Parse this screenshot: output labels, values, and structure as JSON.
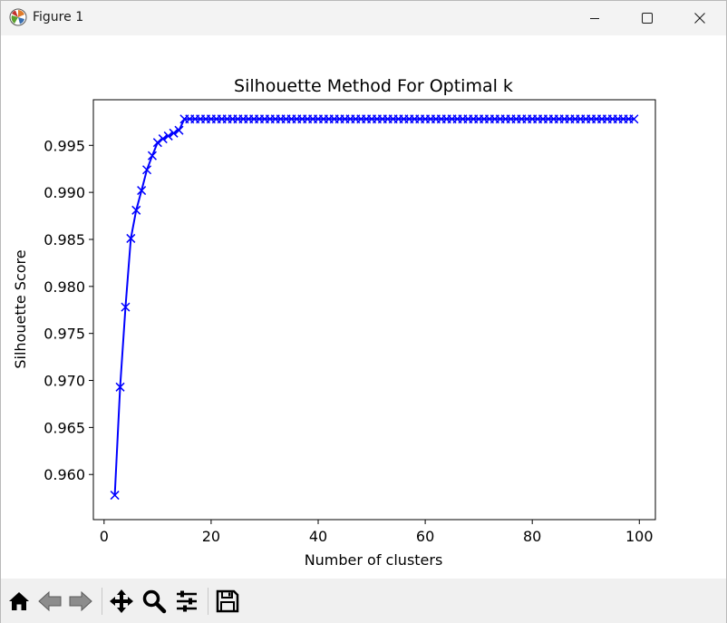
{
  "window": {
    "title": "Figure 1"
  },
  "toolbar": {
    "buttons": [
      {
        "name": "home-icon"
      },
      {
        "name": "back-arrow-icon"
      },
      {
        "name": "forward-arrow-icon"
      },
      {
        "name": "pan-move-icon"
      },
      {
        "name": "zoom-magnifier-icon"
      },
      {
        "name": "configure-subplots-icon"
      },
      {
        "name": "save-floppy-icon"
      }
    ]
  },
  "chart_data": {
    "type": "line",
    "title": "Silhouette Method For Optimal k",
    "xlabel": "Number of clusters",
    "ylabel": "Silhouette Score",
    "xlim": [
      -2,
      103
    ],
    "ylim": [
      0.9552,
      0.99985
    ],
    "xticks": [
      0,
      20,
      40,
      60,
      80,
      100
    ],
    "xtick_labels": [
      "0",
      "20",
      "40",
      "60",
      "80",
      "100"
    ],
    "yticks": [
      0.96,
      0.965,
      0.97,
      0.975,
      0.98,
      0.985,
      0.99,
      0.995
    ],
    "ytick_labels": [
      "0.960",
      "0.965",
      "0.970",
      "0.975",
      "0.980",
      "0.985",
      "0.990",
      "0.995"
    ],
    "grid": false,
    "marker": "x",
    "color": "#0000ff",
    "series": [
      {
        "x": [
          2,
          3,
          4,
          5,
          6,
          7,
          8,
          9,
          10,
          11,
          12,
          13,
          14,
          15,
          16,
          17,
          18,
          19,
          20,
          21,
          22,
          23,
          24,
          25,
          26,
          27,
          28,
          29,
          30,
          31,
          32,
          33,
          34,
          35,
          36,
          37,
          38,
          39,
          40,
          41,
          42,
          43,
          44,
          45,
          46,
          47,
          48,
          49,
          50,
          51,
          52,
          53,
          54,
          55,
          56,
          57,
          58,
          59,
          60,
          61,
          62,
          63,
          64,
          65,
          66,
          67,
          68,
          69,
          70,
          71,
          72,
          73,
          74,
          75,
          76,
          77,
          78,
          79,
          80,
          81,
          82,
          83,
          84,
          85,
          86,
          87,
          88,
          89,
          90,
          91,
          92,
          93,
          94,
          95,
          96,
          97,
          98,
          99
        ],
        "values": [
          0.9578,
          0.9693,
          0.9778,
          0.9851,
          0.9881,
          0.9902,
          0.9924,
          0.9939,
          0.9953,
          0.9957,
          0.996,
          0.9963,
          0.9966,
          0.9978,
          0.9978,
          0.9978,
          0.9978,
          0.9978,
          0.9978,
          0.9978,
          0.9978,
          0.9978,
          0.9978,
          0.9978,
          0.9978,
          0.9978,
          0.9978,
          0.9978,
          0.9978,
          0.9978,
          0.9978,
          0.9978,
          0.9978,
          0.9978,
          0.9978,
          0.9978,
          0.9978,
          0.9978,
          0.9978,
          0.9978,
          0.9978,
          0.9978,
          0.9978,
          0.9978,
          0.9978,
          0.9978,
          0.9978,
          0.9978,
          0.9978,
          0.9978,
          0.9978,
          0.9978,
          0.9978,
          0.9978,
          0.9978,
          0.9978,
          0.9978,
          0.9978,
          0.9978,
          0.9978,
          0.9978,
          0.9978,
          0.9978,
          0.9978,
          0.9978,
          0.9978,
          0.9978,
          0.9978,
          0.9978,
          0.9978,
          0.9978,
          0.9978,
          0.9978,
          0.9978,
          0.9978,
          0.9978,
          0.9978,
          0.9978,
          0.9978,
          0.9978,
          0.9978,
          0.9978,
          0.9978,
          0.9978,
          0.9978,
          0.9978,
          0.9978,
          0.9978,
          0.9978,
          0.9978,
          0.9978,
          0.9978,
          0.9978,
          0.9978,
          0.9978,
          0.9978,
          0.9978,
          0.9978
        ]
      }
    ]
  }
}
